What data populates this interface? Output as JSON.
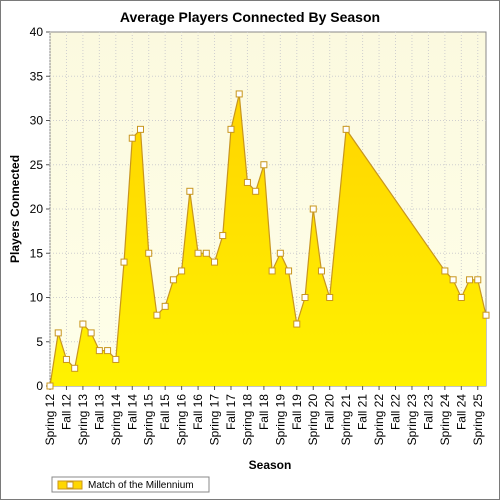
{
  "chart_data": {
    "type": "area",
    "title": "Average Players Connected By Season",
    "xlabel": "Season",
    "ylabel": "Players Connected",
    "ylim": [
      0,
      40
    ],
    "yticks": [
      0,
      5,
      10,
      15,
      20,
      25,
      30,
      35,
      40
    ],
    "grid": true,
    "legend_position": "bottom-left",
    "x_labels": [
      "Spring 12",
      "Fall 12",
      "Spring 13",
      "Fall 13",
      "Spring 14",
      "Fall 14",
      "Spring 15",
      "Fall 15",
      "Spring 16",
      "Fall 16",
      "Spring 17",
      "Fall 17",
      "Spring 18",
      "Fall 18",
      "Spring 19",
      "Fall 19",
      "Spring 20",
      "Fall 20",
      "Spring 21",
      "Fall 21",
      "Spring 22",
      "Fall 22",
      "Spring 23",
      "Fall 23",
      "Spring 24",
      "Fall 24",
      "Spring 25"
    ],
    "series": [
      {
        "name": "Match of the Millennium",
        "color": "#ffd700",
        "line_color": "#c8961e",
        "points": [
          {
            "x": 0,
            "y": 0
          },
          {
            "x": 0.5,
            "y": 6
          },
          {
            "x": 1,
            "y": 3
          },
          {
            "x": 1.5,
            "y": 2
          },
          {
            "x": 2,
            "y": 7
          },
          {
            "x": 2.5,
            "y": 6
          },
          {
            "x": 3,
            "y": 4
          },
          {
            "x": 3.5,
            "y": 4
          },
          {
            "x": 4,
            "y": 3
          },
          {
            "x": 4.5,
            "y": 14
          },
          {
            "x": 5,
            "y": 28
          },
          {
            "x": 5.5,
            "y": 29
          },
          {
            "x": 6,
            "y": 15
          },
          {
            "x": 6.5,
            "y": 8
          },
          {
            "x": 7,
            "y": 9
          },
          {
            "x": 7.5,
            "y": 12
          },
          {
            "x": 8,
            "y": 13
          },
          {
            "x": 8.5,
            "y": 22
          },
          {
            "x": 9,
            "y": 15
          },
          {
            "x": 9.5,
            "y": 15
          },
          {
            "x": 10,
            "y": 14
          },
          {
            "x": 10.5,
            "y": 17
          },
          {
            "x": 11,
            "y": 29
          },
          {
            "x": 11.5,
            "y": 33
          },
          {
            "x": 12,
            "y": 23
          },
          {
            "x": 12.5,
            "y": 22
          },
          {
            "x": 13,
            "y": 25
          },
          {
            "x": 13.5,
            "y": 13
          },
          {
            "x": 14,
            "y": 15
          },
          {
            "x": 14.5,
            "y": 13
          },
          {
            "x": 15,
            "y": 7
          },
          {
            "x": 15.5,
            "y": 10
          },
          {
            "x": 16,
            "y": 20
          },
          {
            "x": 16.5,
            "y": 13
          },
          {
            "x": 17,
            "y": 10
          },
          {
            "x": 18,
            "y": 29
          },
          {
            "x": 24,
            "y": 13
          },
          {
            "x": 24.5,
            "y": 12
          },
          {
            "x": 25,
            "y": 10
          },
          {
            "x": 25.5,
            "y": 12
          },
          {
            "x": 26,
            "y": 12
          },
          {
            "x": 26.5,
            "y": 8
          }
        ]
      }
    ]
  }
}
